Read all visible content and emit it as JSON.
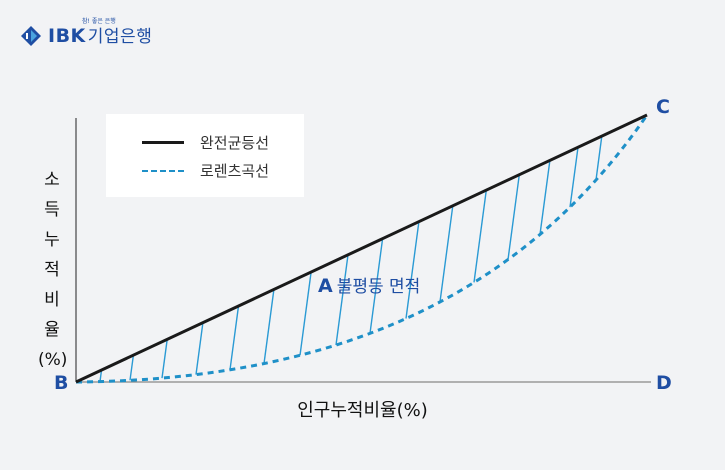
{
  "logo": {
    "slogan": "참! 좋은 은행",
    "brand": "IBK",
    "brand_kor": "기업은행",
    "brand_color": "#1f4ea3"
  },
  "legend": {
    "equality_line": "완전균등선",
    "lorenz_curve": "로렌츠곡선"
  },
  "axes": {
    "ylabel": "소득누적비율(%)",
    "xlabel": "인구누적비율(%)"
  },
  "points": {
    "B": "B",
    "C": "C",
    "D": "D"
  },
  "area": {
    "letter": "A",
    "label": "불평등 면적"
  },
  "colors": {
    "equality": "#1a1a1a",
    "lorenz": "#1f90c8",
    "hatch": "#2a9ad4",
    "axis": "#222222"
  }
}
